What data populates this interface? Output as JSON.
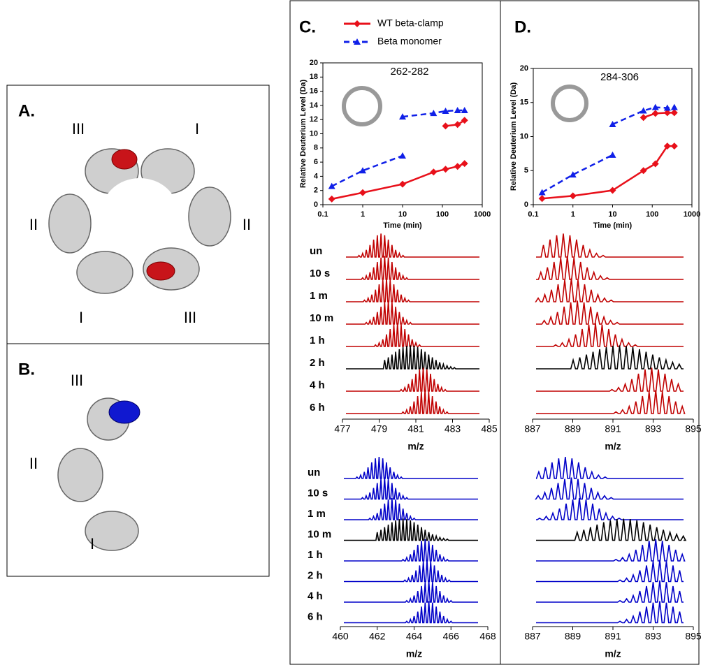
{
  "panels": {
    "A": {
      "label": "A.",
      "domains": [
        "III",
        "I",
        "II",
        "II",
        "I",
        "III"
      ]
    },
    "B": {
      "label": "B.",
      "domains": [
        "III",
        "II",
        "I"
      ]
    },
    "C": {
      "label": "C."
    },
    "D": {
      "label": "D."
    }
  },
  "chart_data": [
    {
      "type": "line",
      "title": "262-282",
      "xlabel": "Time (min)",
      "ylabel": "Relative Deuterium Level (Da)",
      "xscale": "log",
      "xlim": [
        0.1,
        1000
      ],
      "xticks": [
        0.1,
        1,
        10,
        100,
        1000
      ],
      "ylim": [
        0,
        20
      ],
      "yticks": [
        0,
        2,
        4,
        6,
        8,
        10,
        12,
        14,
        16,
        18,
        20
      ],
      "legend": "top",
      "series": [
        {
          "name": "WT beta-clamp",
          "color": "#e8101a",
          "marker": "diamond",
          "dash": false,
          "x": [
            0.167,
            1,
            10,
            60,
            120,
            240,
            360,
            null,
            120,
            240,
            360
          ],
          "values": [
            0.8,
            1.7,
            2.9,
            4.6,
            5.0,
            5.4,
            5.8,
            null,
            11.1,
            11.3,
            11.9
          ]
        },
        {
          "name": "Beta monomer",
          "color": "#1020e8",
          "marker": "triangle",
          "dash": true,
          "x": [
            0.167,
            1,
            10,
            null,
            10,
            60,
            120,
            240,
            360
          ],
          "values": [
            2.6,
            4.8,
            6.9,
            null,
            12.4,
            12.9,
            13.2,
            13.3,
            13.3
          ]
        }
      ]
    },
    {
      "type": "line",
      "title": "284-306",
      "xlabel": "Time (min)",
      "ylabel": "Relative Deuterium Level (Da)",
      "xscale": "log",
      "xlim": [
        0.1,
        1000
      ],
      "xticks": [
        0.1,
        1,
        10,
        100,
        1000
      ],
      "ylim": [
        0,
        20
      ],
      "yticks": [
        0,
        5,
        10,
        15,
        20
      ],
      "series": [
        {
          "name": "WT beta-clamp",
          "color": "#e8101a",
          "marker": "diamond",
          "dash": false,
          "x": [
            0.167,
            1,
            10,
            60,
            120,
            240,
            360,
            null,
            60,
            120,
            240,
            360
          ],
          "values": [
            0.9,
            1.3,
            2.1,
            5.0,
            6.0,
            8.6,
            8.6,
            null,
            12.8,
            13.4,
            13.5,
            13.5
          ]
        },
        {
          "name": "Beta monomer",
          "color": "#1020e8",
          "marker": "triangle",
          "dash": true,
          "x": [
            0.167,
            1,
            10,
            null,
            10,
            60,
            120,
            240,
            360
          ],
          "values": [
            1.8,
            4.4,
            7.3,
            null,
            11.8,
            13.8,
            14.3,
            14.2,
            14.3
          ]
        }
      ]
    },
    {
      "type": "spectrum",
      "xlabel": "m/z",
      "xlim": [
        477,
        485
      ],
      "xticks": [
        477,
        479,
        481,
        483,
        485
      ],
      "rows": [
        "un",
        "10 s",
        "1 m",
        "10 m",
        "1 h",
        "2 h",
        "4 h",
        "6 h"
      ],
      "centers": [
        478.9,
        479.1,
        479.2,
        479.3,
        479.8,
        480.5,
        481.2,
        481.3
      ],
      "colors": [
        "#c00000",
        "#c00000",
        "#c00000",
        "#c00000",
        "#c00000",
        "#000000",
        "#c00000",
        "#c00000"
      ]
    },
    {
      "type": "spectrum",
      "xlabel": "m/z",
      "xlim": [
        460,
        468
      ],
      "xticks": [
        460,
        462,
        464,
        466,
        468
      ],
      "rows": [
        "un",
        "10 s",
        "1 m",
        "10 m",
        "1 h",
        "2 h",
        "4 h",
        "6 h"
      ],
      "centers": [
        461.9,
        462.2,
        462.6,
        463.2,
        464.4,
        464.5,
        464.6,
        464.6
      ],
      "colors": [
        "#0000c8",
        "#0000c8",
        "#0000c8",
        "#000000",
        "#0000c8",
        "#0000c8",
        "#0000c8",
        "#0000c8"
      ]
    },
    {
      "type": "spectrum",
      "xlabel": "m/z",
      "xlim": [
        887,
        895
      ],
      "xticks": [
        887,
        889,
        891,
        893,
        895
      ],
      "centers": [
        888.2,
        888.4,
        888.6,
        888.9,
        889.8,
        891.0,
        892.6,
        892.8
      ],
      "colors": [
        "#c00000",
        "#c00000",
        "#c00000",
        "#c00000",
        "#c00000",
        "#000000",
        "#c00000",
        "#c00000"
      ]
    },
    {
      "type": "spectrum",
      "xlabel": "m/z",
      "xlim": [
        887,
        895
      ],
      "xticks": [
        887,
        889,
        891,
        893,
        895
      ],
      "centers": [
        888.3,
        888.6,
        889.0,
        891.2,
        892.8,
        893.0,
        893.0,
        893.0
      ],
      "colors": [
        "#0000c8",
        "#0000c8",
        "#0000c8",
        "#000000",
        "#0000c8",
        "#0000c8",
        "#0000c8",
        "#0000c8"
      ]
    }
  ]
}
